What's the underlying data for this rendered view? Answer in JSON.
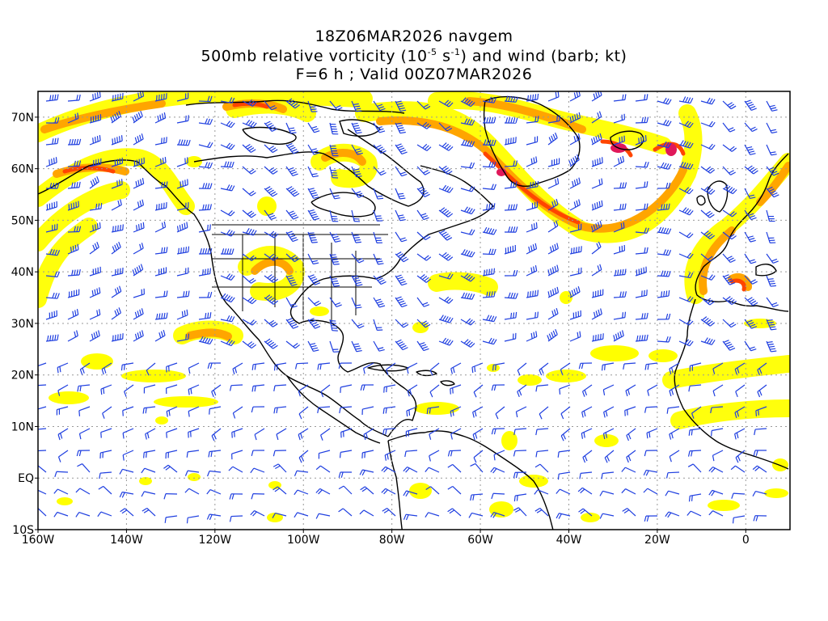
{
  "header": {
    "line1": "18Z06MAR2026 navgem",
    "line2_a": "500mb relative vorticity (10",
    "line2_exp1": "-5",
    "line2_b": " s",
    "line2_exp2": "-1",
    "line2_c": ") and wind (barb; kt)",
    "line3": "F=6 h ; Valid 00Z07MAR2026"
  },
  "map": {
    "projection": "cylindrical lat-lon",
    "lon_range": [
      "160W",
      "10E"
    ],
    "lat_range": [
      "10S",
      "75N"
    ],
    "grid": true,
    "lat_labels": [
      "70N",
      "60N",
      "50N",
      "40N",
      "30N",
      "20N",
      "10N",
      "EQ",
      "10S"
    ],
    "lon_labels": [
      "160W",
      "140W",
      "120W",
      "100W",
      "80W",
      "60W",
      "40W",
      "20W",
      "0"
    ],
    "colors": {
      "vort_low": "#ffff00",
      "vort_mid": "#ffa500",
      "vort_high": "#ff4500",
      "vort_max": "#e0185a",
      "barb": "#1f3fe0",
      "coast": "#000000",
      "grid": "#999999"
    }
  }
}
